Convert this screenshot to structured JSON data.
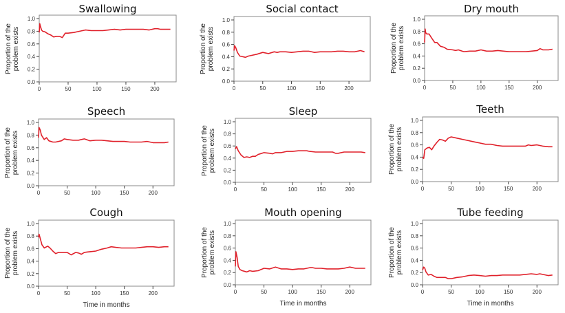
{
  "figure": {
    "line_color": "#e0202a",
    "frame_color": "#888888",
    "y_axis_label_line1": "Proportion of the",
    "y_axis_label_line2": "problem exists",
    "x_axis_label": "Time in months"
  },
  "chart_data": [
    {
      "type": "line",
      "title": "Swallowing",
      "xlabel": "",
      "ylabel": "Proportion of the problem exists",
      "xlim": [
        0,
        237
      ],
      "ylim": [
        0,
        1.0
      ],
      "xticks": [
        0,
        50,
        100,
        150,
        200
      ],
      "yticks": [
        "0.0",
        "0.2",
        "0.4",
        "0.6",
        "0.8",
        "1.0"
      ],
      "grid": false,
      "x": [
        0,
        1,
        2,
        4,
        6,
        10,
        15,
        20,
        25,
        30,
        35,
        40,
        45,
        50,
        60,
        70,
        80,
        90,
        100,
        110,
        120,
        130,
        140,
        150,
        160,
        170,
        180,
        190,
        200,
        205,
        210,
        220,
        227
      ],
      "y": [
        0.78,
        0.92,
        0.88,
        0.82,
        0.8,
        0.79,
        0.76,
        0.74,
        0.71,
        0.72,
        0.72,
        0.7,
        0.77,
        0.77,
        0.78,
        0.8,
        0.82,
        0.81,
        0.81,
        0.81,
        0.82,
        0.83,
        0.82,
        0.83,
        0.83,
        0.83,
        0.83,
        0.82,
        0.84,
        0.84,
        0.83,
        0.83,
        0.83
      ]
    },
    {
      "type": "line",
      "title": "Social contact",
      "xlabel": "",
      "ylabel": "Proportion of the problem exists",
      "xlim": [
        0,
        237
      ],
      "ylim": [
        0,
        1.0
      ],
      "xticks": [
        0,
        50,
        100,
        150,
        200
      ],
      "yticks": [
        "0.0",
        "0.2",
        "0.4",
        "0.6",
        "0.8",
        "1.0"
      ],
      "grid": false,
      "x": [
        0,
        1,
        3,
        6,
        10,
        15,
        20,
        25,
        30,
        40,
        50,
        60,
        70,
        75,
        80,
        90,
        100,
        110,
        120,
        130,
        140,
        150,
        160,
        170,
        180,
        190,
        200,
        210,
        220,
        227
      ],
      "y": [
        0.5,
        0.58,
        0.55,
        0.47,
        0.41,
        0.4,
        0.39,
        0.41,
        0.42,
        0.44,
        0.47,
        0.45,
        0.48,
        0.47,
        0.48,
        0.48,
        0.47,
        0.48,
        0.49,
        0.49,
        0.47,
        0.48,
        0.48,
        0.48,
        0.49,
        0.49,
        0.48,
        0.48,
        0.5,
        0.48
      ]
    },
    {
      "type": "line",
      "title": "Dry mouth",
      "xlabel": "",
      "ylabel": "Proportion of the problem exists",
      "xlim": [
        0,
        237
      ],
      "ylim": [
        0,
        1.0
      ],
      "xticks": [
        0,
        50,
        100,
        150,
        200
      ],
      "yticks": [
        "0.0",
        "0.2",
        "0.4",
        "0.6",
        "0.8",
        "1.0"
      ],
      "grid": false,
      "x": [
        0,
        1,
        2,
        4,
        8,
        12,
        18,
        22,
        28,
        35,
        40,
        50,
        55,
        60,
        70,
        80,
        90,
        100,
        110,
        120,
        130,
        140,
        150,
        160,
        170,
        180,
        190,
        200,
        205,
        210,
        220,
        227
      ],
      "y": [
        0.62,
        0.84,
        0.78,
        0.76,
        0.76,
        0.7,
        0.62,
        0.62,
        0.56,
        0.54,
        0.51,
        0.5,
        0.49,
        0.5,
        0.47,
        0.48,
        0.48,
        0.5,
        0.48,
        0.48,
        0.49,
        0.48,
        0.47,
        0.47,
        0.47,
        0.47,
        0.48,
        0.49,
        0.52,
        0.5,
        0.5,
        0.51
      ]
    },
    {
      "type": "line",
      "title": "Speech",
      "xlabel": "",
      "ylabel": "Proportion of the problem exists",
      "xlim": [
        0,
        237
      ],
      "ylim": [
        0,
        1.0
      ],
      "xticks": [
        0,
        50,
        100,
        150,
        200
      ],
      "yticks": [
        "0.0",
        "0.2",
        "0.4",
        "0.6",
        "0.8",
        "1.0"
      ],
      "grid": false,
      "x": [
        0,
        1,
        3,
        5,
        10,
        14,
        18,
        25,
        30,
        40,
        45,
        50,
        60,
        70,
        75,
        80,
        90,
        100,
        110,
        120,
        130,
        140,
        150,
        160,
        170,
        180,
        190,
        200,
        210,
        220,
        227
      ],
      "y": [
        0.76,
        0.92,
        0.88,
        0.8,
        0.73,
        0.76,
        0.71,
        0.69,
        0.69,
        0.71,
        0.74,
        0.73,
        0.72,
        0.72,
        0.73,
        0.74,
        0.71,
        0.72,
        0.72,
        0.71,
        0.7,
        0.7,
        0.7,
        0.69,
        0.69,
        0.69,
        0.7,
        0.68,
        0.68,
        0.68,
        0.69
      ]
    },
    {
      "type": "line",
      "title": "Sleep",
      "xlabel": "",
      "ylabel": "Proportion of the problem exists",
      "xlim": [
        0,
        237
      ],
      "ylim": [
        0,
        1.0
      ],
      "xticks": [
        0,
        50,
        100,
        150,
        200
      ],
      "yticks": [
        "0.0",
        "0.2",
        "0.4",
        "0.6",
        "0.8",
        "1.0"
      ],
      "grid": false,
      "x": [
        0,
        2,
        5,
        10,
        15,
        20,
        25,
        30,
        35,
        40,
        50,
        60,
        65,
        70,
        80,
        90,
        100,
        110,
        120,
        125,
        130,
        140,
        150,
        160,
        170,
        175,
        180,
        190,
        200,
        210,
        220,
        227
      ],
      "y": [
        0.55,
        0.59,
        0.52,
        0.45,
        0.41,
        0.42,
        0.41,
        0.43,
        0.43,
        0.46,
        0.49,
        0.48,
        0.47,
        0.49,
        0.49,
        0.51,
        0.51,
        0.52,
        0.52,
        0.52,
        0.51,
        0.5,
        0.5,
        0.5,
        0.5,
        0.48,
        0.48,
        0.5,
        0.5,
        0.5,
        0.5,
        0.49
      ]
    },
    {
      "type": "line",
      "title": "Teeth",
      "xlabel": "",
      "ylabel": "Proportion of the problem exists",
      "xlim": [
        0,
        237
      ],
      "ylim": [
        0,
        1.0
      ],
      "xticks": [
        0,
        50,
        100,
        150,
        200
      ],
      "yticks": [
        "0.0",
        "0.2",
        "0.4",
        "0.6",
        "0.8",
        "1.0"
      ],
      "grid": false,
      "x": [
        0,
        2,
        4,
        8,
        12,
        16,
        20,
        25,
        30,
        35,
        40,
        45,
        50,
        60,
        70,
        80,
        90,
        100,
        110,
        120,
        130,
        140,
        150,
        160,
        170,
        180,
        185,
        190,
        200,
        210,
        220,
        227
      ],
      "y": [
        0.4,
        0.38,
        0.52,
        0.55,
        0.56,
        0.52,
        0.58,
        0.64,
        0.69,
        0.68,
        0.66,
        0.71,
        0.73,
        0.71,
        0.69,
        0.67,
        0.65,
        0.63,
        0.61,
        0.61,
        0.59,
        0.58,
        0.58,
        0.58,
        0.58,
        0.58,
        0.6,
        0.59,
        0.6,
        0.58,
        0.57,
        0.57
      ]
    },
    {
      "type": "line",
      "title": "Cough",
      "xlabel": "Time in months",
      "ylabel": "Proportion of the problem exists",
      "xlim": [
        0,
        237
      ],
      "ylim": [
        0,
        1.0
      ],
      "xticks": [
        0,
        50,
        100,
        150,
        200
      ],
      "yticks": [
        "0.0",
        "0.2",
        "0.4",
        "0.6",
        "0.8",
        "1.0"
      ],
      "grid": false,
      "x": [
        0,
        1,
        3,
        6,
        10,
        16,
        20,
        25,
        30,
        35,
        40,
        50,
        57,
        65,
        70,
        75,
        80,
        90,
        100,
        110,
        120,
        127,
        135,
        145,
        150,
        160,
        170,
        180,
        190,
        200,
        210,
        220,
        227
      ],
      "y": [
        0.78,
        0.83,
        0.76,
        0.66,
        0.61,
        0.64,
        0.61,
        0.56,
        0.52,
        0.54,
        0.54,
        0.54,
        0.5,
        0.54,
        0.53,
        0.51,
        0.54,
        0.55,
        0.56,
        0.59,
        0.61,
        0.63,
        0.62,
        0.61,
        0.61,
        0.61,
        0.61,
        0.62,
        0.63,
        0.63,
        0.62,
        0.63,
        0.63
      ]
    },
    {
      "type": "line",
      "title": "Mouth opening",
      "xlabel": "Time in months",
      "ylabel": "Proportion of the problem exists",
      "xlim": [
        0,
        237
      ],
      "ylim": [
        0,
        1.0
      ],
      "xticks": [
        0,
        50,
        100,
        150,
        200
      ],
      "yticks": [
        "0.0",
        "0.2",
        "0.4",
        "0.6",
        "0.8",
        "1.0"
      ],
      "grid": false,
      "x": [
        0,
        1,
        3,
        5,
        8,
        12,
        20,
        25,
        30,
        40,
        45,
        50,
        60,
        70,
        80,
        90,
        100,
        110,
        120,
        130,
        135,
        140,
        150,
        160,
        170,
        180,
        190,
        200,
        210,
        220,
        227
      ],
      "y": [
        0.3,
        0.54,
        0.45,
        0.3,
        0.25,
        0.23,
        0.21,
        0.23,
        0.22,
        0.23,
        0.25,
        0.27,
        0.26,
        0.29,
        0.26,
        0.26,
        0.25,
        0.26,
        0.26,
        0.28,
        0.28,
        0.27,
        0.27,
        0.26,
        0.26,
        0.26,
        0.27,
        0.29,
        0.27,
        0.27,
        0.27
      ]
    },
    {
      "type": "line",
      "title": "Tube feeding",
      "xlabel": "Time in months",
      "ylabel": "Proportion of the problem exists",
      "xlim": [
        0,
        237
      ],
      "ylim": [
        0,
        1.0
      ],
      "xticks": [
        0,
        50,
        100,
        150,
        200
      ],
      "yticks": [
        "0.0",
        "0.2",
        "0.4",
        "0.6",
        "0.8",
        "1.0"
      ],
      "grid": false,
      "x": [
        0,
        2,
        4,
        6,
        10,
        15,
        20,
        25,
        30,
        40,
        45,
        50,
        60,
        70,
        80,
        90,
        100,
        110,
        120,
        130,
        140,
        150,
        160,
        170,
        180,
        190,
        200,
        205,
        210,
        220,
        227
      ],
      "y": [
        0.24,
        0.29,
        0.27,
        0.21,
        0.16,
        0.17,
        0.14,
        0.12,
        0.12,
        0.12,
        0.1,
        0.1,
        0.12,
        0.13,
        0.15,
        0.16,
        0.15,
        0.14,
        0.15,
        0.15,
        0.16,
        0.16,
        0.16,
        0.16,
        0.17,
        0.18,
        0.17,
        0.18,
        0.17,
        0.15,
        0.16
      ]
    }
  ]
}
